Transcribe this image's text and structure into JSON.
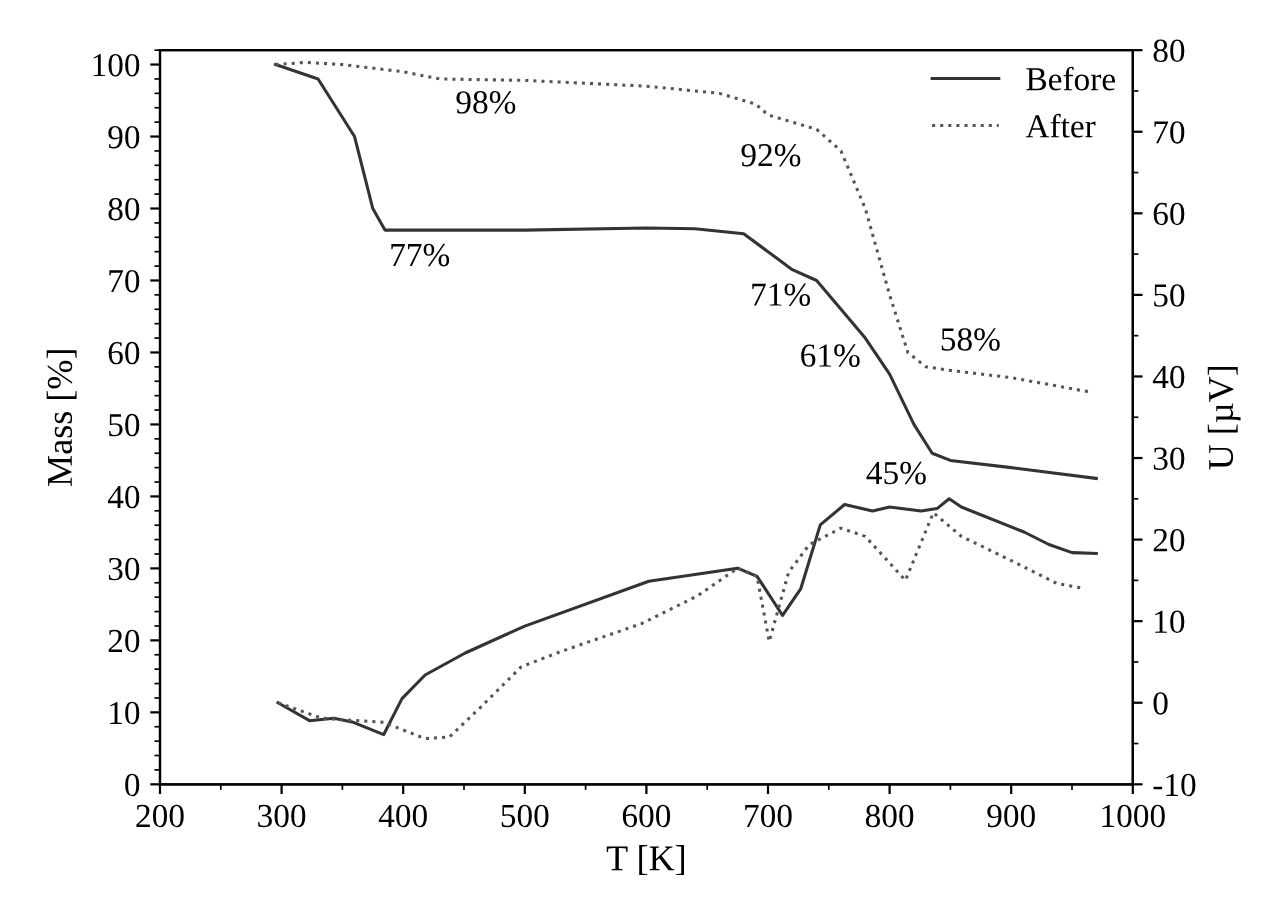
{
  "chart_data": {
    "type": "line",
    "xlabel": "T [K]",
    "ylabel": "Mass [%]",
    "y2label": "U [µV]",
    "xlim": [
      200,
      1000
    ],
    "xticks": [
      200,
      300,
      400,
      500,
      600,
      700,
      800,
      900,
      1000
    ],
    "ylim": [
      0,
      102
    ],
    "yticks": [
      0,
      10,
      20,
      30,
      40,
      50,
      60,
      70,
      80,
      90,
      100
    ],
    "y2lim": [
      -10,
      80
    ],
    "y2ticks": [
      -10,
      0,
      10,
      20,
      30,
      40,
      50,
      60,
      70,
      80
    ],
    "legend": "top right",
    "grid": false,
    "marker": "none",
    "series": [
      {
        "name": "Before",
        "color": "#333333",
        "line_style": "solid",
        "x": [
          295,
          330,
          360,
          375,
          385,
          400,
          500,
          600,
          640,
          680,
          700,
          720,
          740,
          760,
          780,
          800,
          820,
          835,
          850,
          900,
          970
        ],
        "values": [
          100,
          98,
          90,
          80,
          77,
          77,
          77,
          77.3,
          77.2,
          76.5,
          74,
          71.5,
          70,
          66,
          62,
          57,
          50,
          46,
          45,
          44,
          42.5
        ]
      },
      {
        "name": "After",
        "color": "#555555",
        "line_style": "dotted",
        "x": [
          295,
          320,
          350,
          400,
          430,
          500,
          600,
          660,
          690,
          700,
          720,
          740,
          760,
          780,
          800,
          815,
          830,
          850,
          900,
          965
        ],
        "values": [
          100,
          100.3,
          100,
          99,
          98,
          97.8,
          97,
          96,
          94.5,
          93,
          92,
          91,
          88,
          80,
          68,
          60,
          58,
          57.5,
          56.5,
          54.5
        ]
      },
      {
        "color": "#333333",
        "line_style": "solid",
        "axis": "y2",
        "x": [
          297,
          323,
          343,
          359,
          384,
          399,
          418,
          451,
          500,
          602,
          675,
          691,
          712,
          727,
          743,
          763,
          786,
          800,
          826,
          839,
          849,
          859,
          911,
          931,
          950,
          970
        ],
        "values": [
          0,
          -2.2,
          -1.9,
          -2.4,
          -3.9,
          0.5,
          3.4,
          6.1,
          9.4,
          14.9,
          16.5,
          15.5,
          10.7,
          14,
          21.8,
          24.3,
          23.5,
          24,
          23.5,
          23.8,
          25,
          24,
          20.9,
          19.4,
          18.4,
          18.3
        ]
      },
      {
        "color": "#555555",
        "line_style": "dotted",
        "axis": "y2",
        "x": [
          297,
          333,
          384,
          418,
          438,
          464,
          497,
          530,
          596,
          642,
          675,
          691,
          701,
          717,
          734,
          760,
          780,
          813,
          836,
          859,
          899,
          938,
          957
        ],
        "values": [
          0,
          -1.9,
          -2.4,
          -4.4,
          -4.2,
          -0.5,
          4.4,
          6.3,
          9.7,
          13.1,
          16.5,
          15.5,
          7.5,
          16,
          19.4,
          21.4,
          20.4,
          15,
          23.3,
          20.4,
          17.5,
          14.6,
          14.1
        ]
      }
    ],
    "annotations": [
      "98%",
      "92%",
      "77%",
      "71%",
      "61%",
      "58%",
      "45%"
    ]
  }
}
